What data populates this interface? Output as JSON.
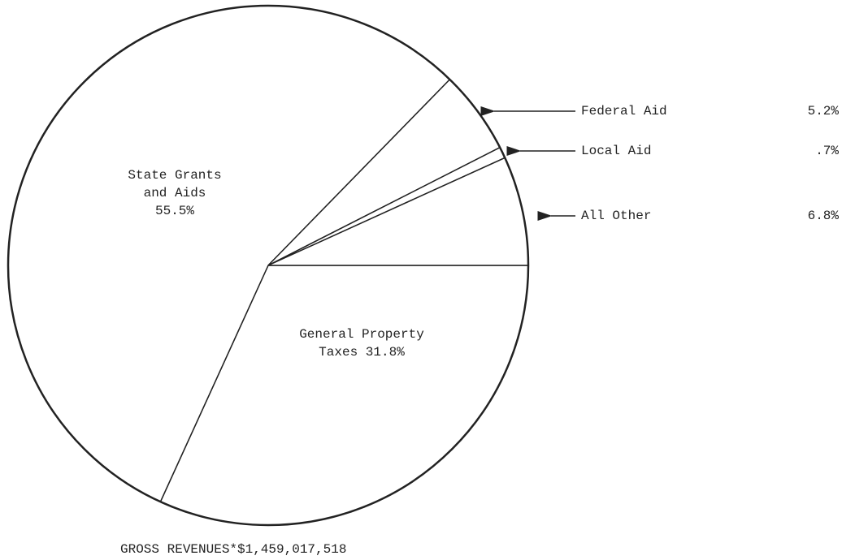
{
  "chart_data": {
    "type": "pie",
    "categories": [
      "General Property Taxes",
      "State Grants and Aids",
      "Federal Aid",
      "Local Aid",
      "All Other"
    ],
    "values": [
      31.8,
      55.5,
      5.2,
      0.7,
      6.8
    ],
    "value_labels": [
      "31.8%",
      "55.5%",
      "5.2%",
      ".7%",
      "6.8%"
    ],
    "footer": {
      "label": "GROSS REVENUES*",
      "amount": "$1,459,017,518"
    }
  }
}
